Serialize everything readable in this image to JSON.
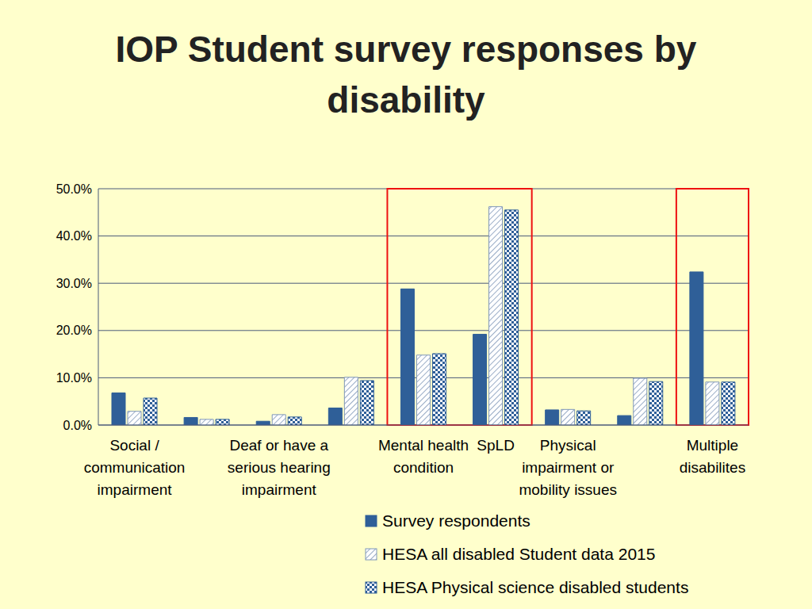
{
  "chart_data": {
    "type": "bar",
    "title": "IOP Student survey responses by disability",
    "categories": [
      "Social / communication impairment",
      null,
      "Deaf or have a serious hearing impairment",
      null,
      "Mental health condition",
      "SpLD",
      "Physical impairment or mobility issues",
      null,
      "Multiple disabilites"
    ],
    "series": [
      {
        "name": "Survey respondents",
        "color": "#2f5f98",
        "values": [
          6.8,
          1.6,
          0.8,
          3.6,
          28.8,
          19.2,
          3.2,
          2.0,
          32.4
        ]
      },
      {
        "name": "HESA all disabled Student data 2015",
        "color": "#7f97b8",
        "values": [
          2.9,
          1.2,
          2.2,
          10.1,
          14.8,
          46.2,
          3.3,
          9.9,
          9.1
        ]
      },
      {
        "name": "HESA Physical science disabled students",
        "color": "#2f5f98",
        "values": [
          5.7,
          1.2,
          1.7,
          9.4,
          15.1,
          45.5,
          3.0,
          9.2,
          9.1
        ]
      }
    ],
    "ylim": [
      0,
      50
    ],
    "yticks": [
      {
        "value": 0,
        "label": "0.0%"
      },
      {
        "value": 10,
        "label": "10.0%"
      },
      {
        "value": 20,
        "label": "20.0%"
      },
      {
        "value": 30,
        "label": "30.0%"
      },
      {
        "value": 40,
        "label": "40.0%"
      },
      {
        "value": 50,
        "label": "50.0%"
      }
    ],
    "grid": true,
    "legend": "bottom",
    "highlight": [
      [
        4,
        5
      ],
      [
        8,
        8
      ]
    ]
  }
}
